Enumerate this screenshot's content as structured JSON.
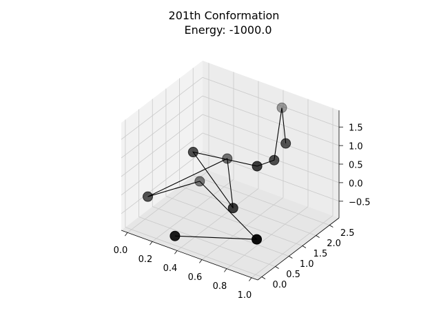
{
  "chart_data": {
    "type": "scatter",
    "projection": "3d",
    "title_line1": "201th Conformation",
    "title_line2": "Energy: -1000.0",
    "xlabel": "",
    "ylabel": "",
    "zlabel": "",
    "grid": true,
    "marker_color": "#000000",
    "line_color": "#000000",
    "pane_colors": [
      "#f2f2f2",
      "#e6e6e6",
      "#ececec"
    ],
    "grid_color": "#c9c9c9",
    "xlim": [
      -0.05,
      1.05
    ],
    "ylim": [
      -0.15,
      2.85
    ],
    "zlim": [
      -0.95,
      1.95
    ],
    "x_ticks": [
      "0.0",
      "0.2",
      "0.4",
      "0.6",
      "0.8",
      "1.0"
    ],
    "y_ticks": [
      "0.0",
      "0.5",
      "1.0",
      "1.5",
      "2.0",
      "2.5"
    ],
    "z_ticks": [
      "−0.5",
      "0.0",
      "0.5",
      "1.0",
      "1.5"
    ],
    "x_tick_values": [
      0,
      0.2,
      0.4,
      0.6,
      0.8,
      1.0
    ],
    "y_tick_values": [
      0,
      0.5,
      1.0,
      1.5,
      2.0,
      2.5
    ],
    "z_tick_values": [
      -0.5,
      0,
      0.5,
      1.0,
      1.5
    ],
    "points": [
      {
        "x": 0.35,
        "y": 0.0,
        "z": -0.7
      },
      {
        "x": 0.9,
        "y": 0.5,
        "z": -0.4
      },
      {
        "x": 0.2,
        "y": 1.6,
        "z": -0.3
      },
      {
        "x": 0.0,
        "y": 0.6,
        "z": -0.4
      },
      {
        "x": 0.4,
        "y": 1.7,
        "z": 0.5
      },
      {
        "x": 0.6,
        "y": 1.0,
        "z": -0.2
      },
      {
        "x": 0.3,
        "y": 0.9,
        "z": 1.0
      },
      {
        "x": 0.75,
        "y": 1.2,
        "z": 1.0
      },
      {
        "x": 0.8,
        "y": 1.6,
        "z": 1.0
      },
      {
        "x": 0.6,
        "y": 2.8,
        "z": 1.5
      },
      {
        "x": 0.85,
        "y": 1.8,
        "z": 1.4
      }
    ]
  }
}
